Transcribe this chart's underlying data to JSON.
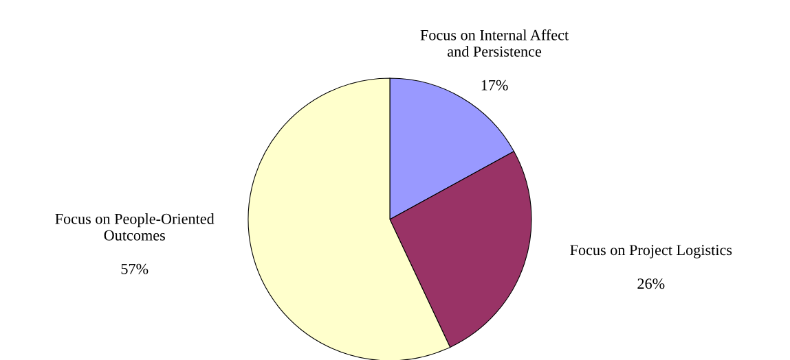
{
  "chart_data": {
    "type": "pie",
    "categories": [
      "Focus on Internal Affect\nand Persistence",
      "Focus on Project Logistics",
      "Focus on People-Oriented\nOutcomes"
    ],
    "values": [
      17,
      26,
      57
    ],
    "value_labels": [
      "17%",
      "26%",
      "57%"
    ],
    "colors": [
      "#9999ff",
      "#993366",
      "#ffffcc"
    ]
  }
}
